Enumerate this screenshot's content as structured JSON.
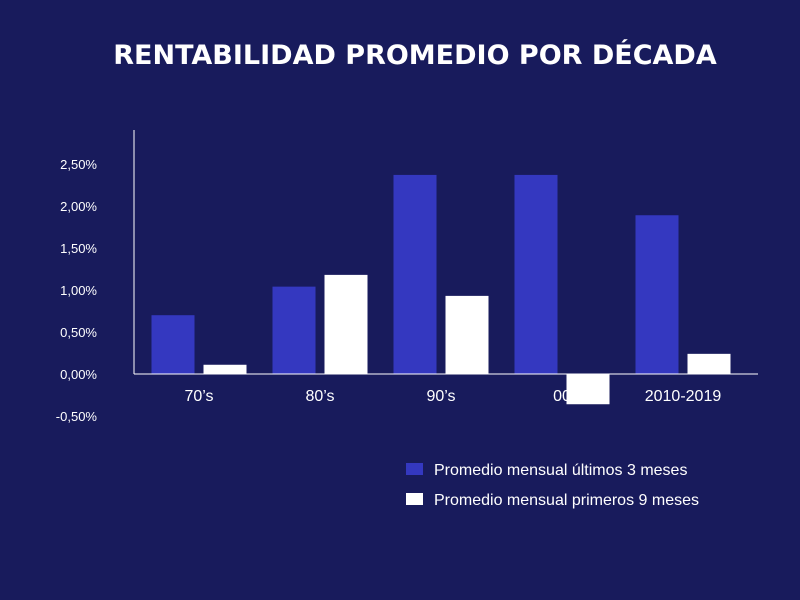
{
  "chart_data": {
    "type": "bar",
    "title": "RENTABILIDAD PROMEDIO POR DÉCADA",
    "categories": [
      "70’s",
      "80’s",
      "90’s",
      "00",
      "2010-2019"
    ],
    "series": [
      {
        "name": "Promedio mensual últimos 3 meses",
        "color": "#3438c0",
        "values": [
          0.7,
          1.04,
          2.37,
          2.37,
          1.89
        ]
      },
      {
        "name": "Promedio mensual primeros 9 meses",
        "color": "#ffffff",
        "values": [
          0.11,
          1.18,
          0.93,
          -0.36,
          0.24
        ]
      }
    ],
    "yticks": [
      "-0,50%",
      "0,00%",
      "0,50%",
      "1,00%",
      "1,50%",
      "2,00%",
      "2,50%"
    ],
    "ytick_values": [
      -0.5,
      0,
      0.5,
      1.0,
      1.5,
      2.0,
      2.5
    ],
    "ylim": [
      -0.5,
      2.9
    ],
    "grid": false,
    "legend_position": "bottom-right",
    "axis_color": "#ffffff",
    "background": "#181b5c"
  }
}
